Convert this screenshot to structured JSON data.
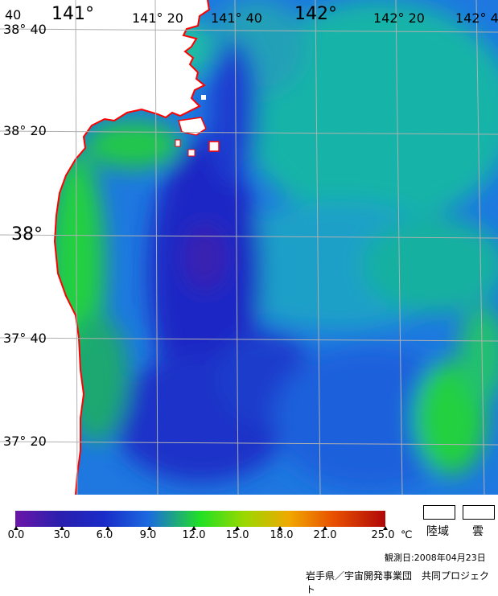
{
  "map": {
    "lon_labels": [
      {
        "text": "141°",
        "id": "lon-141"
      },
      {
        "text": "141° 20",
        "id": "lon-141-20-a"
      },
      {
        "text": "141° 40",
        "id": "lon-141-40"
      },
      {
        "text": "142°",
        "id": "lon-142"
      },
      {
        "text": "142° 20",
        "id": "lon-142-20"
      },
      {
        "text": "142° 4",
        "id": "lon-142-40"
      }
    ],
    "corner_label": "40",
    "lat_labels": [
      {
        "text": "38° 40",
        "id": "lat-38-40"
      },
      {
        "text": "38° 20",
        "id": "lat-38-20"
      },
      {
        "text": "38°",
        "id": "lat-38"
      },
      {
        "text": "37° 40",
        "id": "lat-37-40"
      },
      {
        "text": "37° 20",
        "id": "lat-37-20"
      }
    ],
    "colors": {
      "land": "#ffffff",
      "coast": "#ff0000",
      "grid": "#b0b0b0"
    }
  },
  "legend": {
    "ticks": [
      "0.0",
      "3.0",
      "6.0",
      "9.0",
      "12.0",
      "15.0",
      "18.0",
      "21.0",
      "25.0"
    ],
    "unit": "℃",
    "land_label": "陸域",
    "cloud_label": "雲"
  },
  "observation_date": "観測日:2008年04月23日",
  "credit": "岩手県／宇宙開発事業団　共同プロジェクト"
}
